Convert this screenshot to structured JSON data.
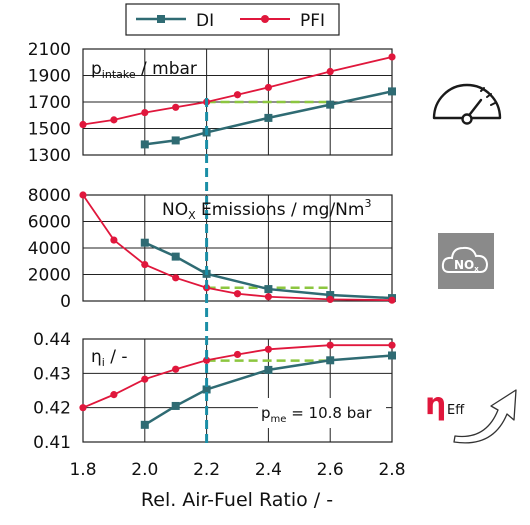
{
  "legend": [
    "DI",
    "PFI"
  ],
  "colors": {
    "DI": "#2f6b73",
    "PFI": "#e0173c",
    "target": "#8cc63f",
    "marker": "#1a8ea6",
    "nox_box": "#8a8a8a"
  },
  "x_axis": {
    "label": "Rel. Air-Fuel Ratio / -",
    "ticks": [
      "1.8",
      "2.0",
      "2.2",
      "2.4",
      "2.6",
      "2.8"
    ]
  },
  "panels": {
    "p1": {
      "label_main": "p",
      "label_sub": "intake",
      "label_rest": " / mbar",
      "ticks": [
        "2100",
        "1900",
        "1700",
        "1500",
        "1300"
      ]
    },
    "p2": {
      "label_main": "NO",
      "label_sub": "X",
      "label_rest": " Emissions / mg/Nm",
      "label_sup": "3",
      "ticks": [
        "8000",
        "6000",
        "4000",
        "2000",
        "0"
      ]
    },
    "p3": {
      "label_main": "η",
      "label_sub": "i",
      "label_rest": " / -",
      "ticks": [
        "0.44",
        "0.43",
        "0.42",
        "0.41"
      ],
      "annot_main": "p",
      "annot_sub": "me",
      "annot_rest": " = 10.8 bar"
    }
  },
  "icons": {
    "nox_text": "NO",
    "nox_sub": "x",
    "eta_symbol": "η",
    "eta_sub": "Eff"
  },
  "chart_data": [
    {
      "type": "line",
      "title": "",
      "xlabel": "Rel. Air-Fuel Ratio / -",
      "ylabel": "p_intake / mbar",
      "xlim": [
        1.8,
        2.8
      ],
      "ylim": [
        1300,
        2100
      ],
      "series": [
        {
          "name": "DI",
          "x": [
            2.0,
            2.1,
            2.2,
            2.4,
            2.6,
            2.8
          ],
          "y": [
            1380,
            1410,
            1470,
            1580,
            1680,
            1780
          ]
        },
        {
          "name": "PFI",
          "x": [
            1.8,
            1.9,
            2.0,
            2.1,
            2.2,
            2.3,
            2.4,
            2.6,
            2.8
          ],
          "y": [
            1530,
            1565,
            1620,
            1660,
            1700,
            1755,
            1810,
            1930,
            2040
          ]
        }
      ],
      "reference": {
        "x": [
          2.2,
          2.6
        ],
        "y": 1700
      }
    },
    {
      "type": "line",
      "title": "",
      "xlabel": "Rel. Air-Fuel Ratio / -",
      "ylabel": "NO_X Emissions / mg/Nm^3",
      "xlim": [
        1.8,
        2.8
      ],
      "ylim": [
        0,
        8000
      ],
      "series": [
        {
          "name": "DI",
          "x": [
            2.0,
            2.1,
            2.2,
            2.4,
            2.6,
            2.8
          ],
          "y": [
            4400,
            3350,
            2050,
            900,
            450,
            220
          ]
        },
        {
          "name": "PFI",
          "x": [
            1.8,
            1.9,
            2.0,
            2.1,
            2.2,
            2.3,
            2.4,
            2.6,
            2.8
          ],
          "y": [
            8000,
            4600,
            2750,
            1750,
            1000,
            550,
            320,
            120,
            60
          ]
        }
      ],
      "reference": {
        "x": [
          2.2,
          2.6
        ],
        "y": 1000
      }
    },
    {
      "type": "line",
      "title": "",
      "xlabel": "Rel. Air-Fuel Ratio / -",
      "ylabel": "η_i / -",
      "xlim": [
        1.8,
        2.8
      ],
      "ylim": [
        0.41,
        0.44
      ],
      "series": [
        {
          "name": "DI",
          "x": [
            2.0,
            2.1,
            2.2,
            2.4,
            2.6,
            2.8
          ],
          "y": [
            0.415,
            0.4205,
            0.4253,
            0.431,
            0.4338,
            0.4352
          ]
        },
        {
          "name": "PFI",
          "x": [
            1.8,
            1.9,
            2.0,
            2.1,
            2.2,
            2.3,
            2.4,
            2.6,
            2.8
          ],
          "y": [
            0.42,
            0.4238,
            0.4283,
            0.4312,
            0.4338,
            0.4355,
            0.437,
            0.4382,
            0.4382
          ]
        }
      ],
      "reference": {
        "x": [
          2.2,
          2.6
        ],
        "y": 0.4337
      }
    },
    {
      "type": "line",
      "marker_x": 2.2
    }
  ]
}
